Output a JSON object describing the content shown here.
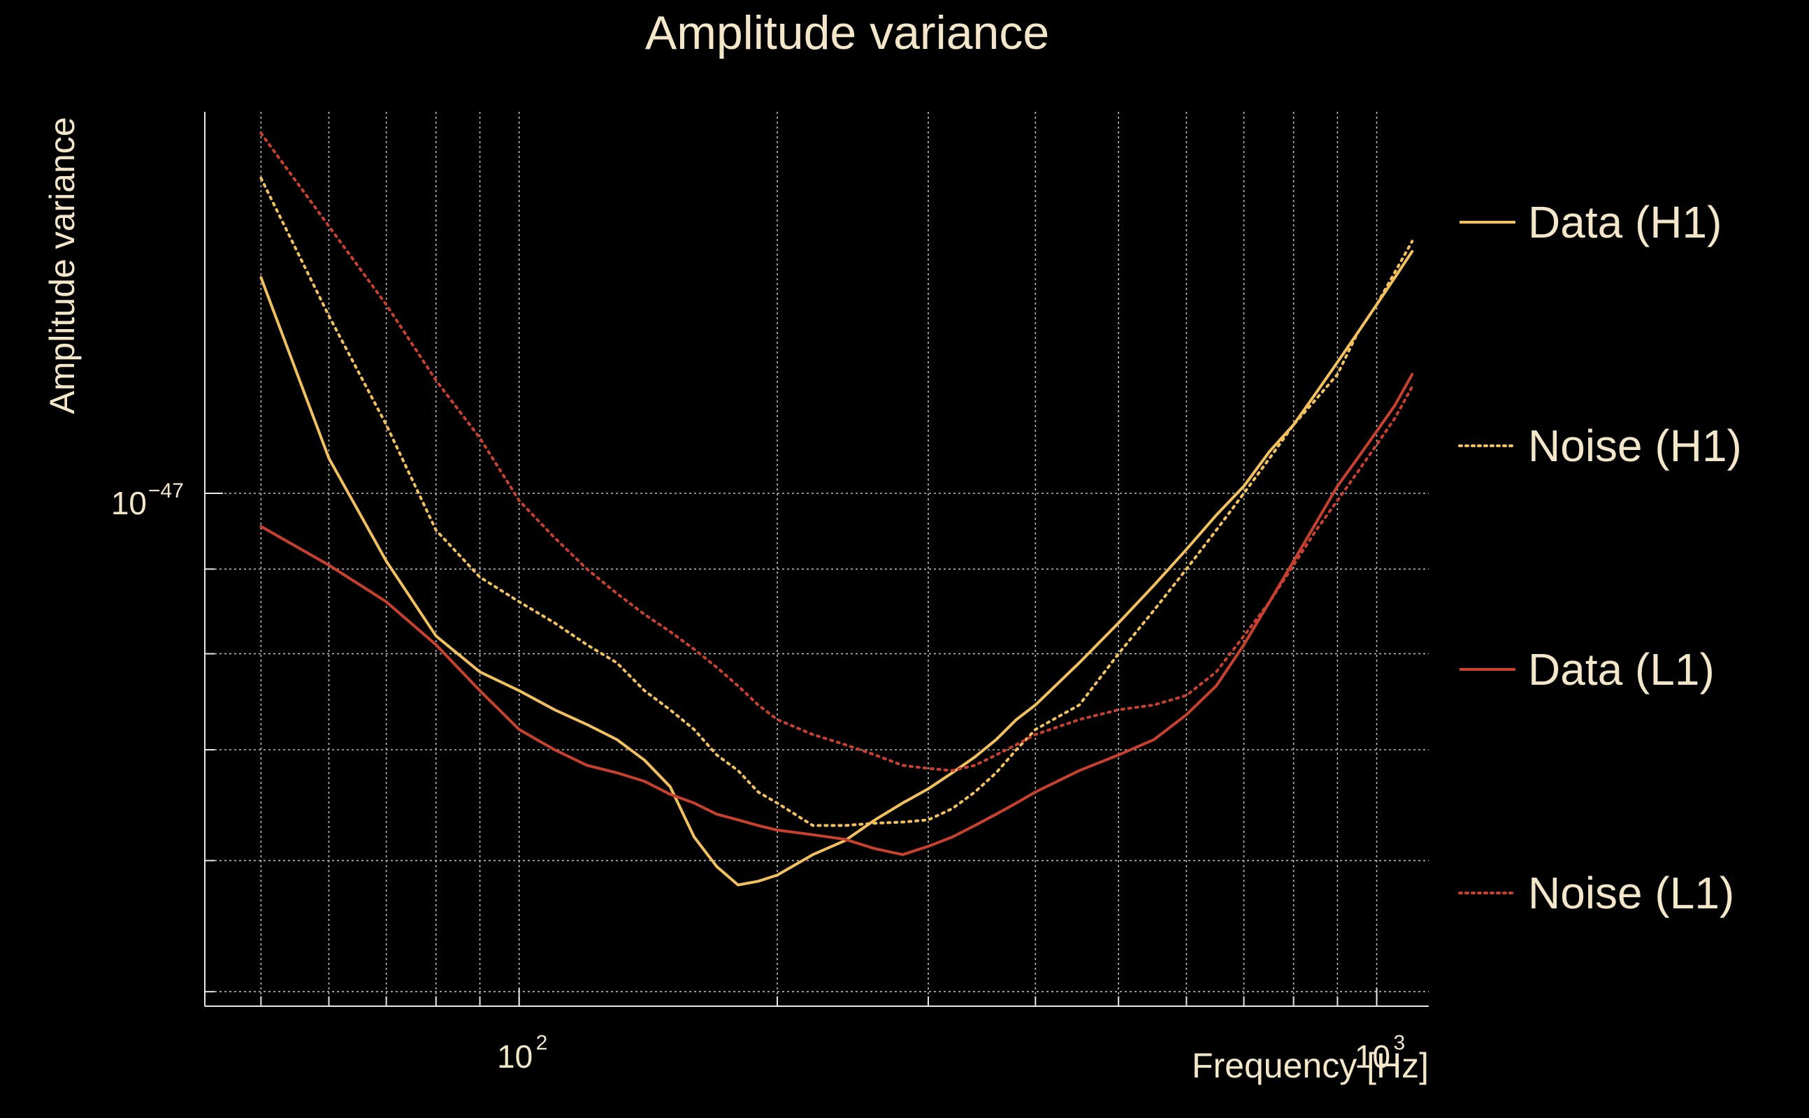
{
  "chart_data": {
    "type": "line",
    "title": "Amplitude variance",
    "xlabel": "Frequency [Hz]",
    "ylabel": "Amplitude variance",
    "xscale": "log",
    "yscale": "log",
    "xlim": [
      43,
      1150
    ],
    "ylim": [
      4.9e-48,
      1.7e-47
    ],
    "grid": true,
    "legend_position": "right",
    "x_ticks": [
      {
        "value": 100,
        "base": "10",
        "exp": "2"
      },
      {
        "value": 1000,
        "base": "10",
        "exp": "3"
      }
    ],
    "y_ticks": [
      {
        "value": 1e-47,
        "base": "10",
        "exp": "−47"
      }
    ],
    "x": [
      50,
      60,
      70,
      80,
      90,
      100,
      110,
      120,
      130,
      140,
      150,
      160,
      170,
      180,
      190,
      200,
      220,
      240,
      260,
      280,
      300,
      320,
      340,
      360,
      380,
      400,
      450,
      500,
      550,
      600,
      650,
      700,
      750,
      800,
      850,
      900,
      950,
      1000,
      1050,
      1100
    ],
    "series": [
      {
        "name": "Data (H1)",
        "color": "#f2c05c",
        "style": "solid",
        "values": [
          1.35e-47,
          1.05e-47,
          9.1e-48,
          8.2e-48,
          7.8e-48,
          7.6e-48,
          7.4e-48,
          7.25e-48,
          7.1e-48,
          6.9e-48,
          6.65e-48,
          6.2e-48,
          5.95e-48,
          5.8e-48,
          5.83e-48,
          5.88e-48,
          6.05e-48,
          6.17e-48,
          6.35e-48,
          6.5e-48,
          6.63e-48,
          6.78e-48,
          6.93e-48,
          7.1e-48,
          7.3e-48,
          7.45e-48,
          7.9e-48,
          8.35e-48,
          8.8e-48,
          9.25e-48,
          9.7e-48,
          1.01e-47,
          1.06e-47,
          1.1e-47,
          1.15e-47,
          1.2e-47,
          1.25e-47,
          1.3e-47,
          1.35e-47,
          1.4e-47
        ]
      },
      {
        "name": "Noise (H1)",
        "color": "#f2c05c",
        "style": "dotted",
        "values": [
          1.55e-47,
          1.28e-47,
          1.1e-47,
          9.5e-48,
          8.9e-48,
          8.6e-48,
          8.35e-48,
          8.1e-48,
          7.9e-48,
          7.6e-48,
          7.4e-48,
          7.2e-48,
          6.95e-48,
          6.8e-48,
          6.6e-48,
          6.5e-48,
          6.3e-48,
          6.3e-48,
          6.32e-48,
          6.33e-48,
          6.35e-48,
          6.45e-48,
          6.6e-48,
          6.78e-48,
          7e-48,
          7.2e-48,
          7.45e-48,
          8e-48,
          8.5e-48,
          9e-48,
          9.5e-48,
          1e-47,
          1.05e-47,
          1.1e-47,
          1.14e-47,
          1.18e-47,
          1.25e-47,
          1.3e-47,
          1.36e-47,
          1.42e-47
        ]
      },
      {
        "name": "Data (L1)",
        "color": "#c8402e",
        "style": "solid",
        "values": [
          9.55e-48,
          9.05e-48,
          8.6e-48,
          8.1e-48,
          7.6e-48,
          7.2e-48,
          7e-48,
          6.85e-48,
          6.78e-48,
          6.7e-48,
          6.58e-48,
          6.5e-48,
          6.4e-48,
          6.35e-48,
          6.3e-48,
          6.26e-48,
          6.22e-48,
          6.18e-48,
          6.1e-48,
          6.05e-48,
          6.12e-48,
          6.2e-48,
          6.3e-48,
          6.4e-48,
          6.5e-48,
          6.6e-48,
          6.8e-48,
          6.95e-48,
          7.1e-48,
          7.35e-48,
          7.65e-48,
          8.1e-48,
          8.6e-48,
          9.1e-48,
          9.6e-48,
          1.01e-47,
          1.05e-47,
          1.09e-47,
          1.13e-47,
          1.18e-47
        ]
      },
      {
        "name": "Noise (L1)",
        "color": "#c8402e",
        "style": "dotted",
        "values": [
          1.65e-47,
          1.45e-47,
          1.3e-47,
          1.17e-47,
          1.08e-47,
          9.9e-48,
          9.4e-48,
          9e-48,
          8.7e-48,
          8.45e-48,
          8.25e-48,
          8.05e-48,
          7.85e-48,
          7.65e-48,
          7.45e-48,
          7.3e-48,
          7.15e-48,
          7.05e-48,
          6.95e-48,
          6.85e-48,
          6.82e-48,
          6.8e-48,
          6.85e-48,
          6.95e-48,
          7.05e-48,
          7.15e-48,
          7.3e-48,
          7.4e-48,
          7.45e-48,
          7.55e-48,
          7.8e-48,
          8.2e-48,
          8.6e-48,
          9.05e-48,
          9.5e-48,
          9.9e-48,
          1.03e-47,
          1.07e-47,
          1.11e-47,
          1.16e-47
        ]
      }
    ]
  }
}
